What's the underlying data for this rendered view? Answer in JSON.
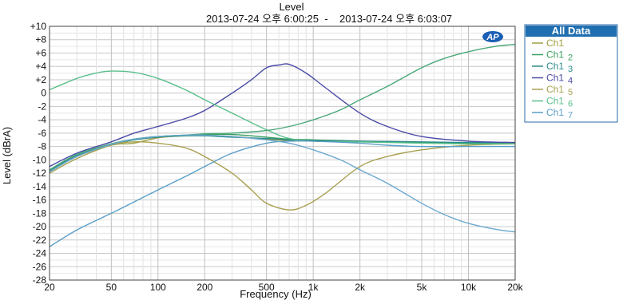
{
  "chart_data": {
    "type": "line",
    "title": "Level",
    "subtitle": "2013-07-24 오후 6:00:25  -    2013-07-24 오후 6:03:07",
    "xlabel": "Frequency (Hz)",
    "ylabel": "Level (dBrA)",
    "x_scale": "log",
    "xlim": [
      20,
      20000
    ],
    "ylim": [
      -28,
      10
    ],
    "grid": true,
    "legend_position": "outside-right-top",
    "legend_title": "All Data",
    "x_ticks": [
      {
        "value": 20,
        "label": "20"
      },
      {
        "value": 50,
        "label": "50"
      },
      {
        "value": 100,
        "label": "100"
      },
      {
        "value": 200,
        "label": "200"
      },
      {
        "value": 500,
        "label": "500"
      },
      {
        "value": 1000,
        "label": "1k"
      },
      {
        "value": 2000,
        "label": "2k"
      },
      {
        "value": 5000,
        "label": "5k"
      },
      {
        "value": 10000,
        "label": "10k"
      },
      {
        "value": 20000,
        "label": "20k"
      }
    ],
    "y_ticks": [
      {
        "value": 10,
        "label": "+10"
      },
      {
        "value": 8,
        "label": "+8"
      },
      {
        "value": 6,
        "label": "+6"
      },
      {
        "value": 4,
        "label": "+4"
      },
      {
        "value": 2,
        "label": "+2"
      },
      {
        "value": 0,
        "label": "0"
      },
      {
        "value": -2,
        "label": "-2"
      },
      {
        "value": -4,
        "label": "-4"
      },
      {
        "value": -6,
        "label": "-6"
      },
      {
        "value": -8,
        "label": "-8"
      },
      {
        "value": -10,
        "label": "-10"
      },
      {
        "value": -12,
        "label": "-12"
      },
      {
        "value": -14,
        "label": "-14"
      },
      {
        "value": -16,
        "label": "-16"
      },
      {
        "value": -18,
        "label": "-18"
      },
      {
        "value": -20,
        "label": "-20"
      },
      {
        "value": -22,
        "label": "-22"
      },
      {
        "value": -24,
        "label": "-24"
      },
      {
        "value": -26,
        "label": "-26"
      },
      {
        "value": -28,
        "label": "-28"
      }
    ],
    "series": [
      {
        "name": "Ch1",
        "subscript": "",
        "color": "#a0a040",
        "x": [
          20,
          30,
          50,
          70,
          100,
          150,
          200,
          300,
          500,
          700,
          1000,
          2000,
          5000,
          10000,
          20000
        ],
        "y": [
          -11.8,
          -9.5,
          -7.8,
          -7.5,
          -6.7,
          -6.4,
          -6.3,
          -6.5,
          -6.9,
          -7.1,
          -7.2,
          -7.3,
          -7.4,
          -7.5,
          -7.5
        ]
      },
      {
        "name": "Ch1",
        "subscript": "2",
        "color": "#3aa060",
        "x": [
          20,
          30,
          50,
          70,
          100,
          150,
          200,
          300,
          500,
          700,
          1000,
          2000,
          5000,
          10000,
          20000
        ],
        "y": [
          -11.5,
          -9.2,
          -7.6,
          -6.9,
          -6.5,
          -6.3,
          -6.2,
          -6.2,
          -6.6,
          -6.9,
          -7.0,
          -7.2,
          -7.4,
          -7.5,
          -7.6
        ]
      },
      {
        "name": "Ch1",
        "subscript": "3",
        "color": "#2a8a8a",
        "x": [
          20,
          30,
          50,
          70,
          100,
          150,
          200,
          300,
          500,
          700,
          1000,
          2000,
          5000,
          10000,
          20000
        ],
        "y": [
          -11.6,
          -9.4,
          -7.7,
          -7.0,
          -6.6,
          -6.4,
          -6.4,
          -6.6,
          -6.8,
          -7.0,
          -7.1,
          -7.2,
          -7.3,
          -7.4,
          -7.4
        ]
      },
      {
        "name": "Ch1",
        "subscript": "4",
        "color": "#4a4aa8",
        "x": [
          20,
          30,
          50,
          70,
          100,
          150,
          200,
          300,
          400,
          500,
          600,
          700,
          900,
          1200,
          2000,
          3000,
          5000,
          10000,
          20000
        ],
        "y": [
          -11.0,
          -9.0,
          -7.3,
          -6.0,
          -5.0,
          -3.8,
          -2.6,
          0.0,
          2.0,
          3.8,
          4.2,
          4.3,
          3.0,
          0.8,
          -3.0,
          -5.0,
          -6.5,
          -7.2,
          -7.4
        ]
      },
      {
        "name": "Ch1",
        "subscript": "5",
        "color": "#a8a050",
        "x": [
          20,
          30,
          50,
          70,
          100,
          150,
          200,
          300,
          400,
          500,
          700,
          900,
          1200,
          2000,
          3000,
          5000,
          10000,
          20000
        ],
        "y": [
          -12.0,
          -9.8,
          -7.8,
          -7.3,
          -7.5,
          -8.2,
          -9.5,
          -12.0,
          -14.5,
          -16.5,
          -17.5,
          -16.8,
          -15.0,
          -11.0,
          -9.5,
          -8.5,
          -7.8,
          -7.6
        ]
      },
      {
        "name": "Ch1",
        "subscript": "6",
        "color": "#5abf8a",
        "x": [
          20,
          30,
          40,
          50,
          70,
          100,
          150,
          200,
          300,
          500,
          700,
          1000,
          2000,
          3000,
          5000,
          10000,
          20000
        ],
        "y": [
          0.5,
          2.2,
          3.0,
          3.3,
          3.1,
          2.2,
          0.5,
          -1.0,
          -3.0,
          -5.5,
          -6.8,
          -7.2,
          -7.3,
          -7.4,
          -7.5,
          -7.6,
          -7.6
        ]
      },
      {
        "name": "Ch1",
        "subscript": "7",
        "color": "#5a9ec8",
        "x": [
          20,
          30,
          50,
          70,
          100,
          150,
          200,
          300,
          500,
          700,
          1000,
          2000,
          3000,
          5000,
          10000,
          20000
        ],
        "y": [
          -23.0,
          -20.5,
          -18.0,
          -16.3,
          -14.5,
          -12.5,
          -11.0,
          -9.0,
          -7.5,
          -7.2,
          -7.2,
          -7.5,
          -7.8,
          -8.0,
          -8.0,
          -8.0
        ]
      }
    ],
    "extra_curves": [
      {
        "name": "",
        "color": "#4aa878",
        "x": [
          20,
          30,
          50,
          70,
          100,
          150,
          200,
          300,
          500,
          700,
          1000,
          1500,
          2000,
          3000,
          5000,
          7000,
          10000,
          15000,
          20000
        ],
        "y": [
          -11.5,
          -9.2,
          -7.6,
          -6.9,
          -6.5,
          -6.3,
          -6.1,
          -6.0,
          -5.6,
          -5.0,
          -4.0,
          -2.5,
          -1.0,
          1.0,
          3.8,
          5.2,
          6.2,
          7.0,
          7.3
        ]
      },
      {
        "name": "",
        "color": "#6aa8d0",
        "x": [
          20,
          30,
          50,
          70,
          100,
          150,
          200,
          300,
          500,
          700,
          1000,
          1500,
          2000,
          3000,
          5000,
          7000,
          10000,
          15000,
          20000
        ],
        "y": [
          -11.8,
          -9.5,
          -7.7,
          -6.9,
          -6.5,
          -6.3,
          -6.3,
          -6.5,
          -7.0,
          -7.5,
          -8.5,
          -10.0,
          -11.5,
          -13.5,
          -16.5,
          -18.2,
          -19.5,
          -20.4,
          -20.8
        ]
      }
    ]
  }
}
